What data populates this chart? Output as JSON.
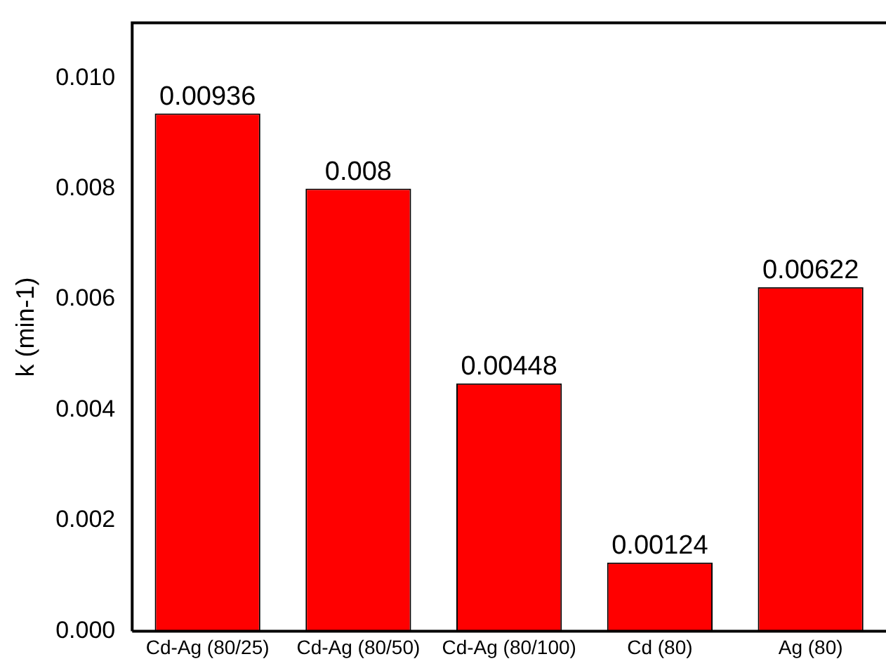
{
  "chart_data": {
    "type": "bar",
    "ylabel": "k (min-1)",
    "categories": [
      "Cd-Ag (80/25)",
      "Cd-Ag (80/50)",
      "Cd-Ag (80/100)",
      "Cd (80)",
      "Ag (80)"
    ],
    "values": [
      0.00936,
      0.008,
      0.00448,
      0.00124,
      0.00622
    ],
    "color": "#ff0000",
    "ylim": [
      0,
      0.011
    ],
    "yticks": [
      {
        "value": 0,
        "label": "0.000"
      },
      {
        "value": 0.002,
        "label": "0.002"
      },
      {
        "value": 0.004,
        "label": "0.004"
      },
      {
        "value": 0.006,
        "label": "0.006"
      },
      {
        "value": 0.008,
        "label": "0.008"
      },
      {
        "value": 0.01,
        "label": "0.010"
      }
    ],
    "grid": false,
    "legend": false,
    "data_labels": true
  }
}
